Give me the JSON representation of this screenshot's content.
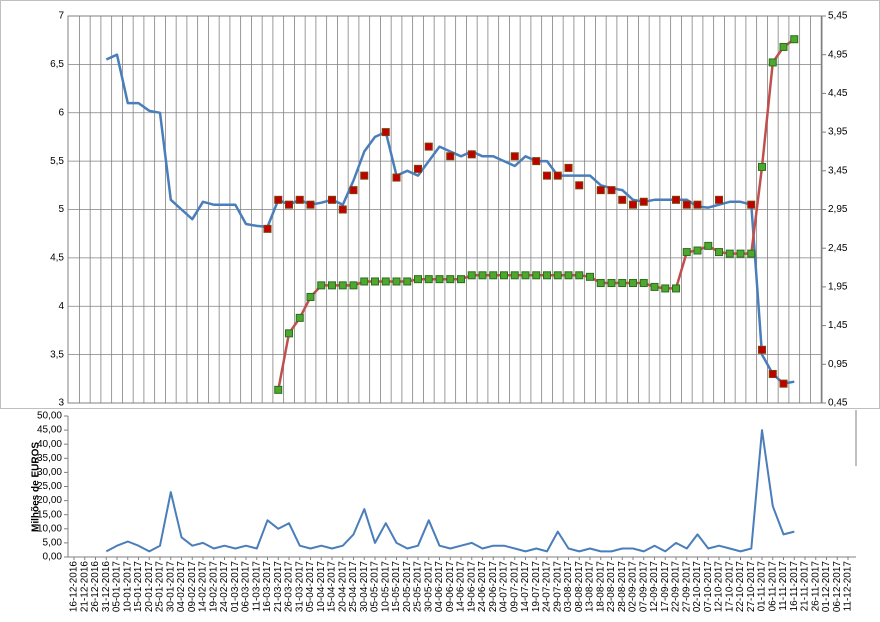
{
  "chart_data": [
    {
      "type": "line",
      "ylim": [
        3,
        7
      ],
      "yticks": [
        3,
        {
          "value": 3.5,
          "label": "3,5"
        },
        4,
        {
          "value": 4.5,
          "label": "4,5"
        },
        5,
        {
          "value": 5.5,
          "label": "5,5"
        },
        6,
        {
          "value": 6.5,
          "label": "6,5"
        },
        7
      ],
      "y2lim": [
        0.45,
        5.45
      ],
      "y2ticks": [
        {
          "value": 0.45,
          "label": "0,45"
        },
        {
          "value": 0.95,
          "label": "0,95"
        },
        {
          "value": 1.45,
          "label": "1,45"
        },
        {
          "value": 1.95,
          "label": "1,95"
        },
        {
          "value": 2.45,
          "label": "2,45"
        },
        {
          "value": 2.95,
          "label": "2,95"
        },
        {
          "value": 3.45,
          "label": "3,45"
        },
        {
          "value": 3.95,
          "label": "3,95"
        },
        {
          "value": 4.45,
          "label": "4,45"
        },
        {
          "value": 4.95,
          "label": "4,95"
        },
        {
          "value": 5.45,
          "label": "5,45"
        }
      ],
      "grid": true,
      "series": [
        {
          "color": "#4a7ebb",
          "line": true,
          "values": [
            null,
            null,
            null,
            6.55,
            6.6,
            6.1,
            6.1,
            6.02,
            6.0,
            5.1,
            5.0,
            4.9,
            5.08,
            5.05,
            5.05,
            5.05,
            4.85,
            4.83,
            4.82,
            5.1,
            5.05,
            5.1,
            5.05,
            5.07,
            5.1,
            5.05,
            5.3,
            5.6,
            5.75,
            5.8,
            5.35,
            5.4,
            5.35,
            5.5,
            5.65,
            5.6,
            5.55,
            5.6,
            5.55,
            5.55,
            5.5,
            5.45,
            5.55,
            5.5,
            5.5,
            5.35,
            5.35,
            5.35,
            5.35,
            5.25,
            5.22,
            5.2,
            5.1,
            5.08,
            5.1,
            5.1,
            5.1,
            5.1,
            5.03,
            5.02,
            5.05,
            5.08,
            5.08,
            5.05,
            3.5,
            3.3,
            3.2,
            3.22,
            null,
            null,
            null,
            null,
            null
          ]
        },
        {
          "color": "#c00000",
          "line": false,
          "values": [
            null,
            null,
            null,
            null,
            null,
            null,
            null,
            null,
            null,
            null,
            null,
            null,
            null,
            null,
            null,
            null,
            null,
            null,
            4.8,
            5.1,
            5.05,
            5.1,
            5.05,
            null,
            5.1,
            5.0,
            5.2,
            5.35,
            null,
            5.8,
            5.33,
            null,
            5.42,
            5.65,
            null,
            5.55,
            null,
            5.57,
            null,
            null,
            null,
            5.55,
            null,
            5.5,
            5.35,
            5.35,
            5.43,
            5.25,
            null,
            5.2,
            5.2,
            5.1,
            5.05,
            5.08,
            null,
            null,
            5.1,
            5.05,
            5.05,
            null,
            5.1,
            null,
            null,
            5.05,
            3.55,
            3.3,
            3.2,
            null,
            null,
            null,
            null,
            null,
            null
          ]
        },
        {
          "color": "#c0504d",
          "marker": "#4ea72e",
          "line": true,
          "axis": "y2",
          "values": [
            null,
            null,
            null,
            null,
            null,
            null,
            null,
            null,
            null,
            null,
            null,
            null,
            null,
            null,
            null,
            null,
            null,
            null,
            null,
            0.62,
            1.35,
            1.55,
            1.82,
            1.97,
            1.97,
            1.97,
            1.97,
            2.02,
            2.02,
            2.02,
            2.02,
            2.02,
            2.05,
            2.05,
            2.05,
            2.05,
            2.05,
            2.1,
            2.1,
            2.1,
            2.1,
            2.1,
            2.1,
            2.1,
            2.1,
            2.1,
            2.1,
            2.1,
            2.08,
            2.0,
            2.0,
            2.0,
            2.0,
            2.0,
            1.95,
            1.93,
            1.93,
            2.4,
            2.42,
            2.48,
            2.4,
            2.38,
            2.38,
            2.38,
            3.5,
            4.85,
            5.05,
            5.15,
            null,
            null,
            null,
            null,
            null
          ]
        }
      ]
    },
    {
      "type": "line",
      "ylabel": "Milhões de EUROS",
      "ylim": [
        0,
        50
      ],
      "yticks": [
        {
          "value": 0,
          "label": "0,00"
        },
        {
          "value": 5,
          "label": "5,00"
        },
        {
          "value": 10,
          "label": "10,00"
        },
        {
          "value": 15,
          "label": "15,00"
        },
        {
          "value": 20,
          "label": "20,00"
        },
        {
          "value": 25,
          "label": "25,00"
        },
        {
          "value": 30,
          "label": "30,00"
        },
        {
          "value": 35,
          "label": "35,00"
        },
        {
          "value": 40,
          "label": "40,00"
        },
        {
          "value": 45,
          "label": "45,00"
        },
        {
          "value": 50,
          "label": "50,00"
        }
      ],
      "color": "#4a7ebb",
      "categories": [
        "16-12-2016",
        "21-12-2016",
        "26-12-2016",
        "31-12-2016",
        "05-01-2017",
        "10-01-2017",
        "15-01-2017",
        "20-01-2017",
        "25-01-2017",
        "30-01-2017",
        "04-02-2017",
        "09-02-2017",
        "14-02-2017",
        "19-02-2017",
        "24-02-2017",
        "01-03-2017",
        "06-03-2017",
        "11-03-2017",
        "16-03-2017",
        "21-03-2017",
        "26-03-2017",
        "31-03-2017",
        "05-04-2017",
        "10-04-2017",
        "15-04-2017",
        "20-04-2017",
        "25-04-2017",
        "30-04-2017",
        "05-05-2017",
        "10-05-2017",
        "15-05-2017",
        "20-05-2017",
        "25-05-2017",
        "30-05-2017",
        "04-06-2017",
        "09-06-2017",
        "14-06-2017",
        "19-06-2017",
        "24-06-2017",
        "29-06-2017",
        "04-07-2017",
        "09-07-2017",
        "14-07-2017",
        "19-07-2017",
        "24-07-2017",
        "29-07-2017",
        "03-08-2017",
        "08-08-2017",
        "13-08-2017",
        "18-08-2017",
        "23-08-2017",
        "28-08-2017",
        "02-09-2017",
        "07-09-2017",
        "12-09-2017",
        "17-09-2017",
        "22-09-2017",
        "27-09-2017",
        "02-10-2017",
        "07-10-2017",
        "12-10-2017",
        "17-10-2017",
        "22-10-2017",
        "27-10-2017",
        "01-11-2017",
        "06-11-2017",
        "11-11-2017",
        "16-11-2017",
        "21-11-2017",
        "26-11-2017",
        "01-12-2017",
        "06-12-2017",
        "11-12-2017"
      ],
      "values": [
        null,
        null,
        null,
        2,
        4,
        5.5,
        4,
        2,
        4,
        23,
        7,
        4,
        5,
        3,
        4,
        3,
        4,
        3,
        13,
        10,
        12,
        4,
        3,
        4,
        3,
        4,
        8,
        17,
        5,
        12,
        5,
        3,
        4,
        13,
        4,
        3,
        4,
        5,
        3,
        4,
        4,
        3,
        2,
        3,
        2,
        9,
        3,
        2,
        3,
        2,
        2,
        3,
        3,
        2,
        4,
        2,
        5,
        3,
        8,
        3,
        4,
        3,
        2,
        3,
        45,
        18,
        8,
        9,
        null,
        null,
        null,
        null,
        null
      ]
    }
  ]
}
